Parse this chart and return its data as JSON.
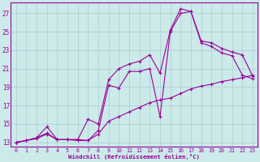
{
  "bg_color": "#cceaea",
  "grid_color": "#aacece",
  "line_color": "#990099",
  "xlabel": "Windchill (Refroidissement éolien,°C)",
  "xlim": [
    -0.5,
    23.5
  ],
  "ylim": [
    12.5,
    28.2
  ],
  "xticks": [
    0,
    1,
    2,
    3,
    4,
    5,
    6,
    7,
    8,
    9,
    10,
    11,
    12,
    13,
    14,
    15,
    16,
    17,
    18,
    19,
    20,
    21,
    22,
    23
  ],
  "yticks": [
    13,
    15,
    17,
    19,
    21,
    23,
    25,
    27
  ],
  "series": [
    {
      "x": [
        0,
        1,
        2,
        3,
        4,
        5,
        6,
        7,
        8,
        9,
        10,
        11,
        12,
        13,
        14,
        15,
        16,
        17,
        18,
        19,
        20,
        21,
        22,
        23
      ],
      "y": [
        13.0,
        13.2,
        13.5,
        14.7,
        13.3,
        13.3,
        13.3,
        15.5,
        15.0,
        19.8,
        21.0,
        21.5,
        21.8,
        22.5,
        20.5,
        25.2,
        27.5,
        27.2,
        24.0,
        23.8,
        23.2,
        22.8,
        22.5,
        20.2
      ]
    },
    {
      "x": [
        0,
        1,
        2,
        3,
        4,
        5,
        6,
        7,
        8,
        9,
        10,
        11,
        12,
        13,
        14,
        15,
        16,
        17,
        18,
        19,
        20,
        21,
        22,
        23
      ],
      "y": [
        13.0,
        13.2,
        13.5,
        14.0,
        13.3,
        13.3,
        13.2,
        13.2,
        14.3,
        19.2,
        18.9,
        20.7,
        20.7,
        21.0,
        15.8,
        25.0,
        27.0,
        27.2,
        23.8,
        23.4,
        22.7,
        22.4,
        20.3,
        19.9
      ]
    },
    {
      "x": [
        0,
        1,
        2,
        3,
        4,
        5,
        6,
        7,
        8,
        9,
        10,
        11,
        12,
        13,
        14,
        15,
        16,
        17,
        18,
        19,
        20,
        21,
        22,
        23
      ],
      "y": [
        13.0,
        13.2,
        13.4,
        13.9,
        13.3,
        13.3,
        13.3,
        13.2,
        13.9,
        15.3,
        15.8,
        16.3,
        16.8,
        17.3,
        17.6,
        17.8,
        18.3,
        18.8,
        19.1,
        19.3,
        19.6,
        19.8,
        20.0,
        20.3
      ]
    }
  ]
}
